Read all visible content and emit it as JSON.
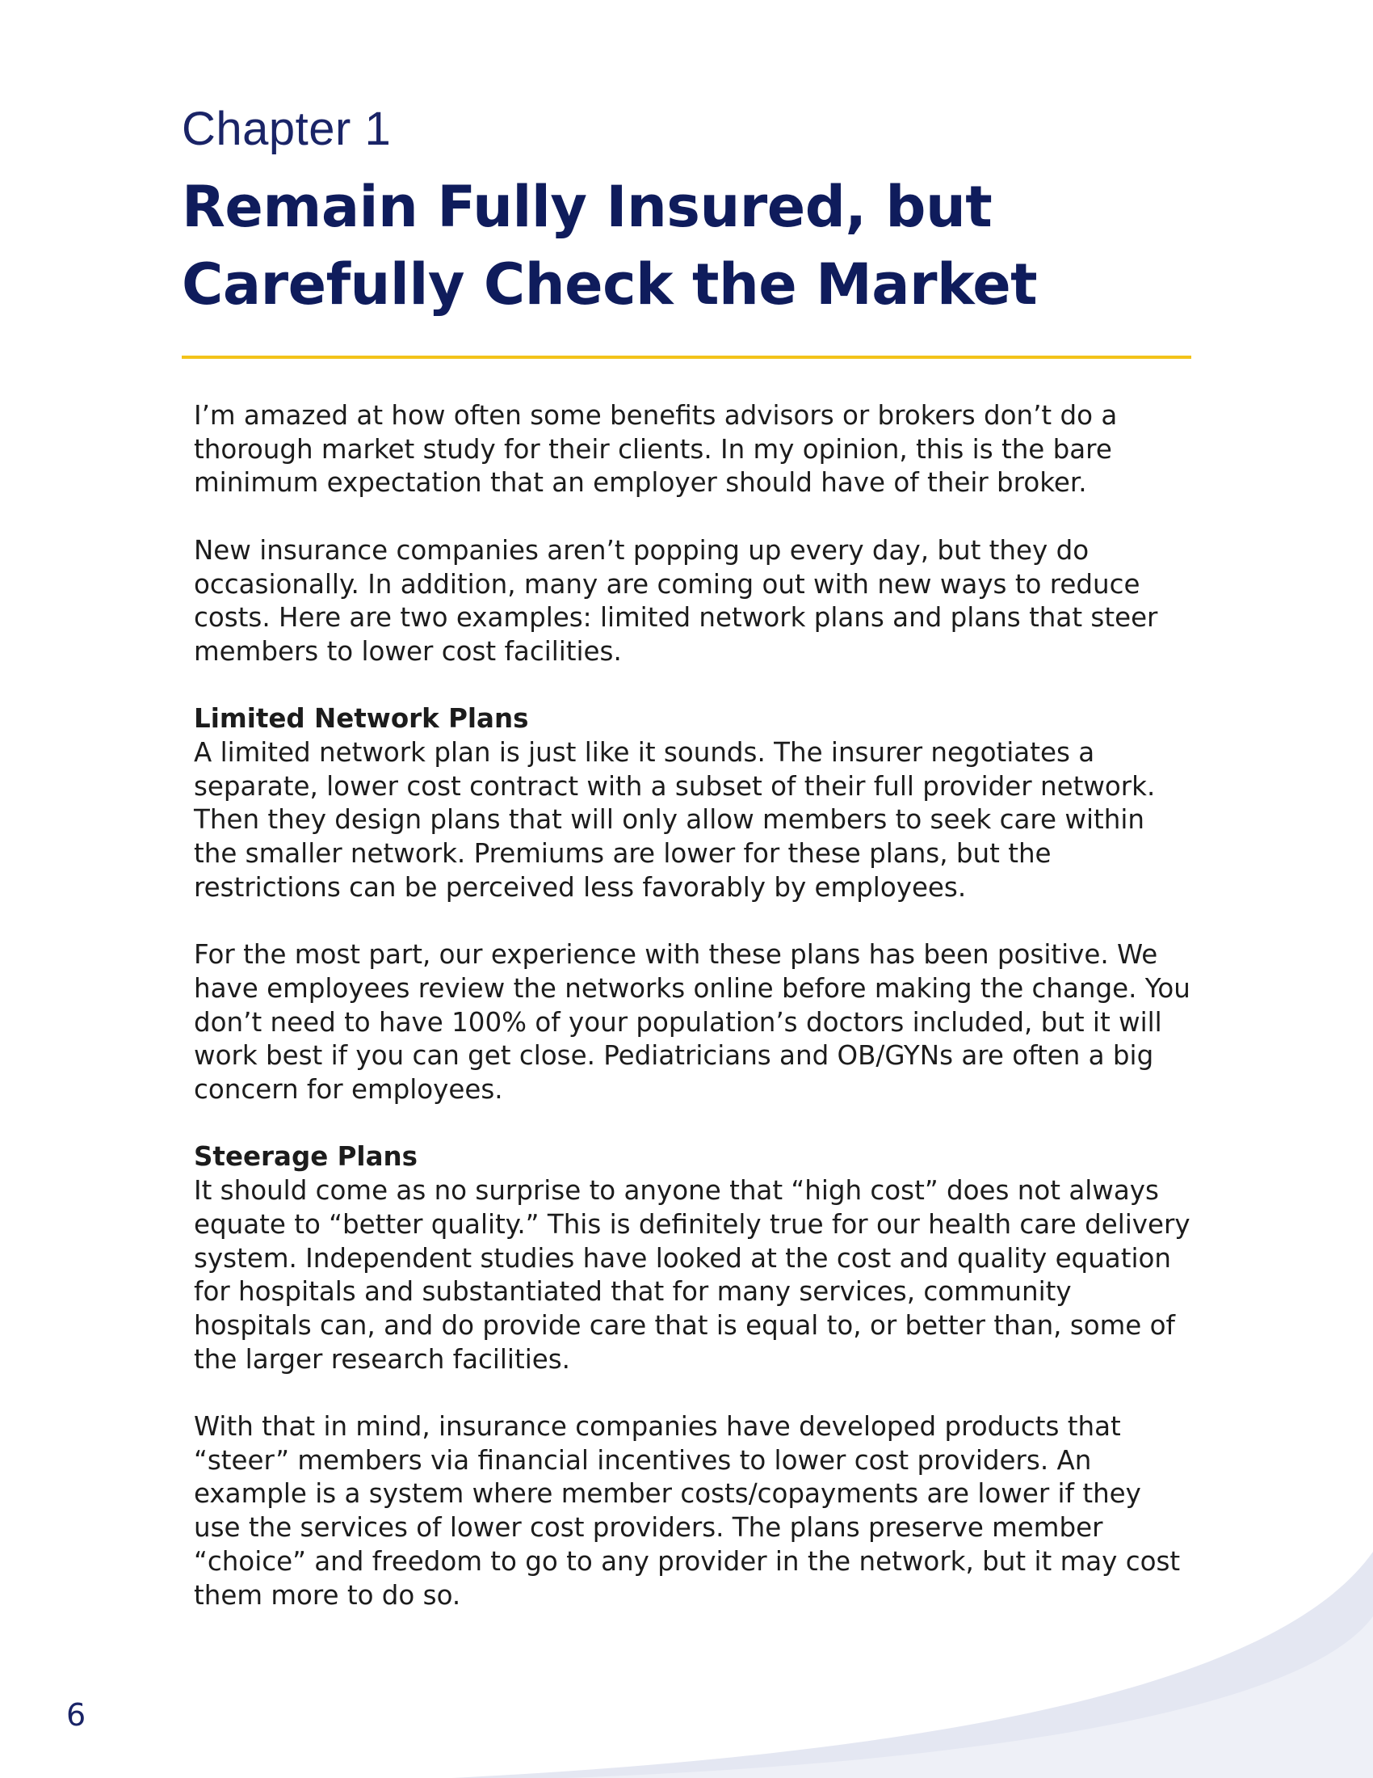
{
  "chapter": {
    "label": "Chapter 1",
    "title": "Remain Fully Insured, but Carefully Check the Market"
  },
  "sections": [
    {
      "heading": "",
      "paragraphs": [
        "I’m amazed at how often some benefits advisors or brokers don’t do a thorough market study for their clients.  In my opinion, this is the bare minimum expectation that an employer should have of their broker.",
        "New insurance companies aren’t popping up every day, but they do occasionally.  In addition, many are coming out with new ways to reduce costs.  Here are two examples:  limited network plans and plans that steer members to lower cost facilities."
      ]
    },
    {
      "heading": "Limited Network Plans",
      "paragraphs": [
        "A limited network plan is just like it sounds.  The insurer negotiates a separate, lower cost contract with a subset of their full provider network. Then they design plans that will only allow members to seek care within the smaller network.  Premiums are lower for these plans, but the restrictions can be perceived less favorably by employees.",
        "For the most part, our experience with these plans has been positive.  We have employees review the networks online before making the change. You don’t need to have 100% of your population’s doctors included, but it will work best if you can get close.  Pediatricians and OB/GYNs are often a big concern for employees."
      ]
    },
    {
      "heading": "Steerage Plans",
      "paragraphs": [
        "It should come as no surprise to anyone that “high cost” does not always equate to “better quality.”  This is definitely true for our health care delivery system.  Independent studies have looked at the cost and quality equation for hospitals and substantiated that for many services, community hospitals can, and do provide care that is equal to, or better than, some of the larger research facilities.",
        "With that in mind, insurance companies have developed products that “steer” members via financial incentives to lower cost providers.  An example is a system where member costs/copayments are lower if they use the services of lower cost providers.  The plans preserve member “choice” and freedom to go to any provider in the network, but it may cost them more to do so."
      ]
    }
  ],
  "page_number": "6",
  "colors": {
    "title": "#0f1c5c",
    "rule": "#f3c31a",
    "swoosh": "#e4e7f2"
  }
}
